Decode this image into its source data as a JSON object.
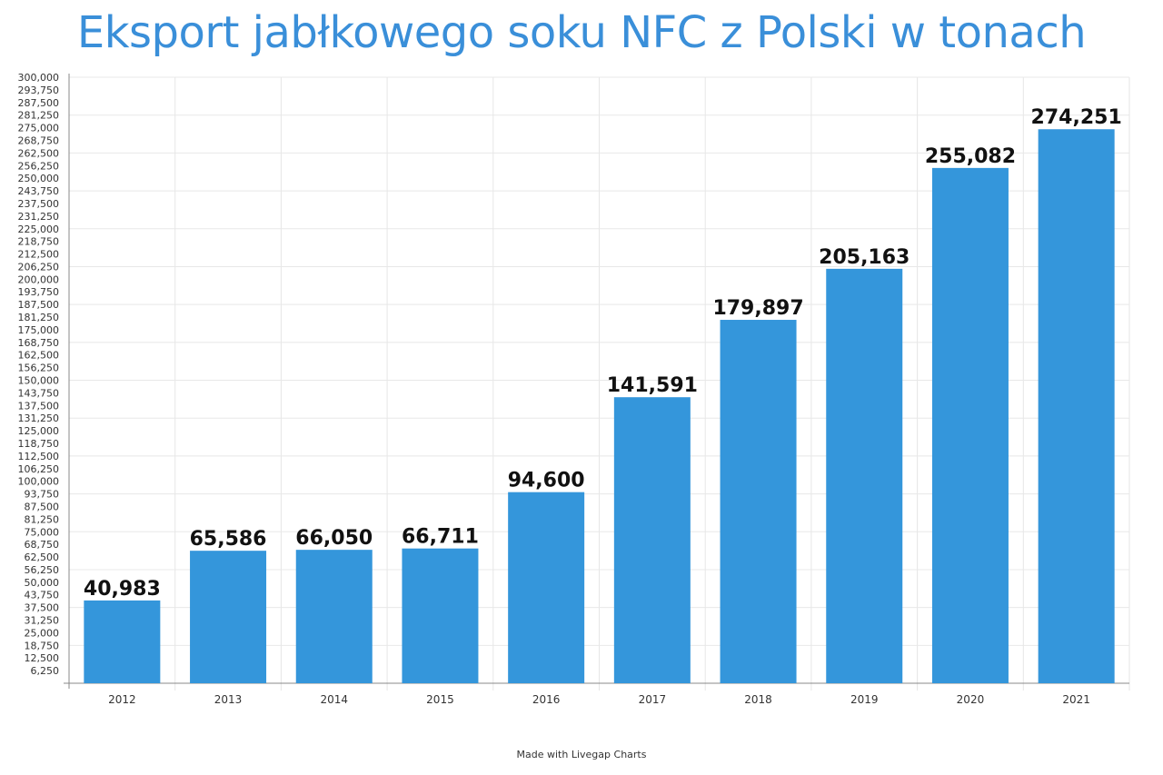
{
  "chart_data": {
    "type": "bar",
    "title": "Eksport jabłkowego soku NFC z Polski w tonach",
    "categories": [
      "2012",
      "2013",
      "2014",
      "2015",
      "2016",
      "2017",
      "2018",
      "2019",
      "2020",
      "2021"
    ],
    "values": [
      40983,
      65586,
      66050,
      66711,
      94600,
      141591,
      179897,
      205163,
      255082,
      274251
    ],
    "data_labels": [
      "40,983",
      "65,586",
      "66,050",
      "66,711",
      "94,600",
      "141,591",
      "179,897",
      "205,163",
      "255,082",
      "274,251"
    ],
    "xlabel": "",
    "ylabel": "",
    "ylim": [
      0,
      300000
    ],
    "ytick_step": 6250,
    "grid": true,
    "bar_color": "#3496db",
    "title_color": "#3a8fd9"
  },
  "footer": {
    "credit": "Made with Livegap Charts"
  }
}
